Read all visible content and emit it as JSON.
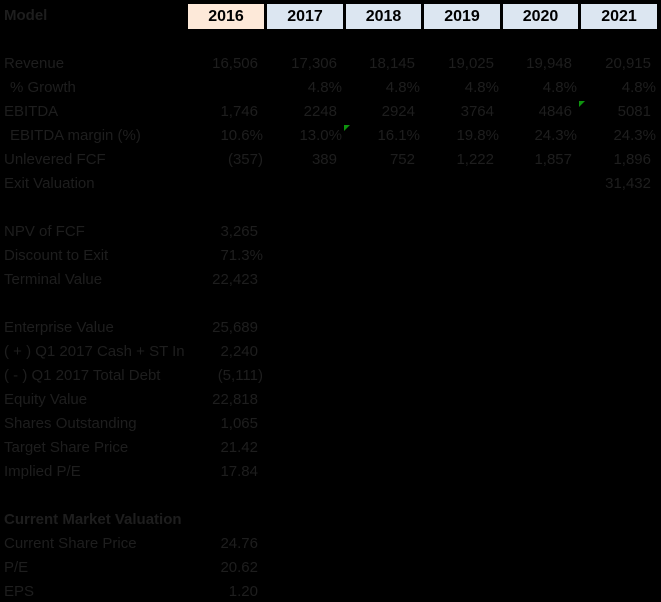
{
  "header": {
    "label": "Model",
    "years": [
      "2016",
      "2017",
      "2018",
      "2019",
      "2020",
      "2021"
    ],
    "current_year_index": 0
  },
  "colors": {
    "background": "#000000",
    "body_text": "#1E1E1E",
    "current_year_fill": "#FDE9D9",
    "forecast_year_fill": "#DCE6F1",
    "header_text": "#000000",
    "error_indicator_green": "#0E930E"
  },
  "rows": [
    {
      "label": "",
      "values": []
    },
    {
      "label": "Revenue",
      "values": [
        "16,506",
        "17,306",
        "18,145",
        "19,025",
        "19,948",
        "20,915"
      ]
    },
    {
      "label": "% Growth",
      "indent": true,
      "values": [
        "",
        "4.8%",
        "4.8%",
        "4.8%",
        "4.8%",
        "4.8%"
      ]
    },
    {
      "label": "EBITDA",
      "values": [
        "1,746",
        "2248",
        "2924",
        "3764",
        "4846",
        "5081"
      ],
      "indicators": [
        5
      ]
    },
    {
      "label": "EBITDA margin (%)",
      "indent": true,
      "values": [
        "10.6%",
        "13.0%",
        "16.1%",
        "19.8%",
        "24.3%",
        "24.3%"
      ],
      "indicators": [
        2
      ]
    },
    {
      "label": "Unlevered FCF",
      "values": [
        "(357)",
        "389",
        "752",
        "1,222",
        "1,857",
        "1,896"
      ]
    },
    {
      "label": "Exit Valuation",
      "values": [
        "",
        "",
        "",
        "",
        "",
        "31,432"
      ]
    },
    {
      "label": "",
      "values": []
    },
    {
      "label": "NPV of FCF",
      "values": [
        "3,265"
      ]
    },
    {
      "label": "Discount to Exit",
      "values": [
        "71.3%"
      ]
    },
    {
      "label": "Terminal Value",
      "values": [
        "22,423"
      ]
    },
    {
      "label": "",
      "values": []
    },
    {
      "label": "Enterprise Value",
      "values": [
        "25,689"
      ]
    },
    {
      "label": "( + ) Q1 2017 Cash + ST In",
      "values": [
        "2,240"
      ]
    },
    {
      "label": "( - ) Q1 2017 Total Debt",
      "values": [
        "(5,111)"
      ]
    },
    {
      "label": "Equity Value",
      "values": [
        "22,818"
      ]
    },
    {
      "label": "Shares Outstanding",
      "values": [
        "1,065"
      ]
    },
    {
      "label": "Target Share Price",
      "values": [
        "21.42"
      ]
    },
    {
      "label": "Implied P/E",
      "values": [
        "17.84"
      ]
    },
    {
      "label": "",
      "values": []
    },
    {
      "label": "Current Market Valuation",
      "bold": true,
      "values": []
    },
    {
      "label": "Current Share Price",
      "values": [
        "24.76"
      ]
    },
    {
      "label": "P/E",
      "values": [
        "20.62"
      ]
    },
    {
      "label": "EPS",
      "values": [
        "1.20"
      ]
    }
  ]
}
